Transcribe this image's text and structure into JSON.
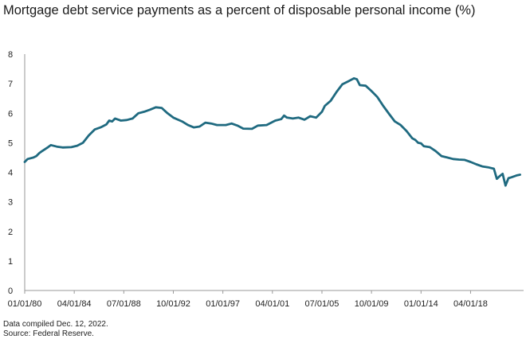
{
  "chart_data": {
    "type": "line",
    "title": "Mortgage debt service payments as a percent of disposable personal income (%)",
    "xlabel": "",
    "ylabel": "",
    "ylim": [
      0,
      8
    ],
    "yticks": [
      0,
      1,
      2,
      3,
      4,
      5,
      6,
      7,
      8
    ],
    "xlim": [
      1980.0,
      2022.8
    ],
    "xtick_labels": [
      "01/01/80",
      "04/01/84",
      "07/01/88",
      "10/01/92",
      "01/01/97",
      "04/01/01",
      "07/01/05",
      "10/01/09",
      "01/01/14",
      "04/01/18"
    ],
    "xtick_positions": [
      1980.0,
      1984.25,
      1988.5,
      1992.75,
      1997.0,
      2001.25,
      2005.5,
      2009.75,
      2014.0,
      2018.25
    ],
    "grid": false,
    "legend": "none",
    "series": [
      {
        "line_color": "#1f6a80",
        "points": [
          [
            1980.0,
            4.35
          ],
          [
            1980.25,
            4.45
          ],
          [
            1980.75,
            4.5
          ],
          [
            1981.0,
            4.55
          ],
          [
            1981.25,
            4.65
          ],
          [
            1981.5,
            4.72
          ],
          [
            1982.0,
            4.85
          ],
          [
            1982.25,
            4.92
          ],
          [
            1982.75,
            4.87
          ],
          [
            1983.25,
            4.84
          ],
          [
            1984.0,
            4.85
          ],
          [
            1984.5,
            4.9
          ],
          [
            1985.0,
            5.0
          ],
          [
            1985.5,
            5.25
          ],
          [
            1986.0,
            5.45
          ],
          [
            1986.5,
            5.52
          ],
          [
            1987.0,
            5.62
          ],
          [
            1987.25,
            5.75
          ],
          [
            1987.5,
            5.72
          ],
          [
            1987.75,
            5.82
          ],
          [
            1988.25,
            5.75
          ],
          [
            1988.75,
            5.77
          ],
          [
            1989.25,
            5.82
          ],
          [
            1989.75,
            6.0
          ],
          [
            1990.25,
            6.05
          ],
          [
            1990.75,
            6.12
          ],
          [
            1991.25,
            6.2
          ],
          [
            1991.75,
            6.18
          ],
          [
            1992.25,
            6.0
          ],
          [
            1992.75,
            5.85
          ],
          [
            1993.5,
            5.72
          ],
          [
            1994.0,
            5.6
          ],
          [
            1994.5,
            5.52
          ],
          [
            1995.0,
            5.55
          ],
          [
            1995.5,
            5.68
          ],
          [
            1996.0,
            5.65
          ],
          [
            1996.5,
            5.6
          ],
          [
            1997.25,
            5.6
          ],
          [
            1997.75,
            5.65
          ],
          [
            1998.25,
            5.58
          ],
          [
            1998.75,
            5.48
          ],
          [
            1999.5,
            5.47
          ],
          [
            2000.0,
            5.58
          ],
          [
            2000.75,
            5.6
          ],
          [
            2001.25,
            5.7
          ],
          [
            2001.5,
            5.75
          ],
          [
            2002.0,
            5.8
          ],
          [
            2002.25,
            5.92
          ],
          [
            2002.5,
            5.85
          ],
          [
            2003.0,
            5.82
          ],
          [
            2003.5,
            5.85
          ],
          [
            2004.0,
            5.78
          ],
          [
            2004.5,
            5.9
          ],
          [
            2005.0,
            5.85
          ],
          [
            2005.5,
            6.05
          ],
          [
            2005.75,
            6.25
          ],
          [
            2006.25,
            6.42
          ],
          [
            2006.75,
            6.72
          ],
          [
            2007.25,
            6.98
          ],
          [
            2007.75,
            7.08
          ],
          [
            2008.25,
            7.18
          ],
          [
            2008.5,
            7.15
          ],
          [
            2008.75,
            6.95
          ],
          [
            2009.25,
            6.93
          ],
          [
            2009.75,
            6.75
          ],
          [
            2010.25,
            6.55
          ],
          [
            2010.75,
            6.25
          ],
          [
            2011.25,
            5.98
          ],
          [
            2011.75,
            5.72
          ],
          [
            2012.25,
            5.6
          ],
          [
            2012.75,
            5.4
          ],
          [
            2013.25,
            5.15
          ],
          [
            2013.5,
            5.1
          ],
          [
            2013.75,
            5.0
          ],
          [
            2014.0,
            4.98
          ],
          [
            2014.25,
            4.88
          ],
          [
            2014.75,
            4.85
          ],
          [
            2015.25,
            4.72
          ],
          [
            2015.75,
            4.55
          ],
          [
            2016.25,
            4.5
          ],
          [
            2016.75,
            4.45
          ],
          [
            2017.25,
            4.43
          ],
          [
            2017.75,
            4.42
          ],
          [
            2018.25,
            4.35
          ],
          [
            2018.75,
            4.27
          ],
          [
            2019.25,
            4.2
          ],
          [
            2019.75,
            4.17
          ],
          [
            2020.25,
            4.12
          ],
          [
            2020.5,
            3.78
          ],
          [
            2020.75,
            3.87
          ],
          [
            2021.0,
            3.95
          ],
          [
            2021.25,
            3.55
          ],
          [
            2021.5,
            3.8
          ],
          [
            2021.75,
            3.83
          ],
          [
            2022.25,
            3.9
          ],
          [
            2022.5,
            3.92
          ]
        ]
      }
    ]
  },
  "footnotes": {
    "line1": "Data compiled Dec. 12, 2022.",
    "line2": "Source: Federal Reserve."
  }
}
